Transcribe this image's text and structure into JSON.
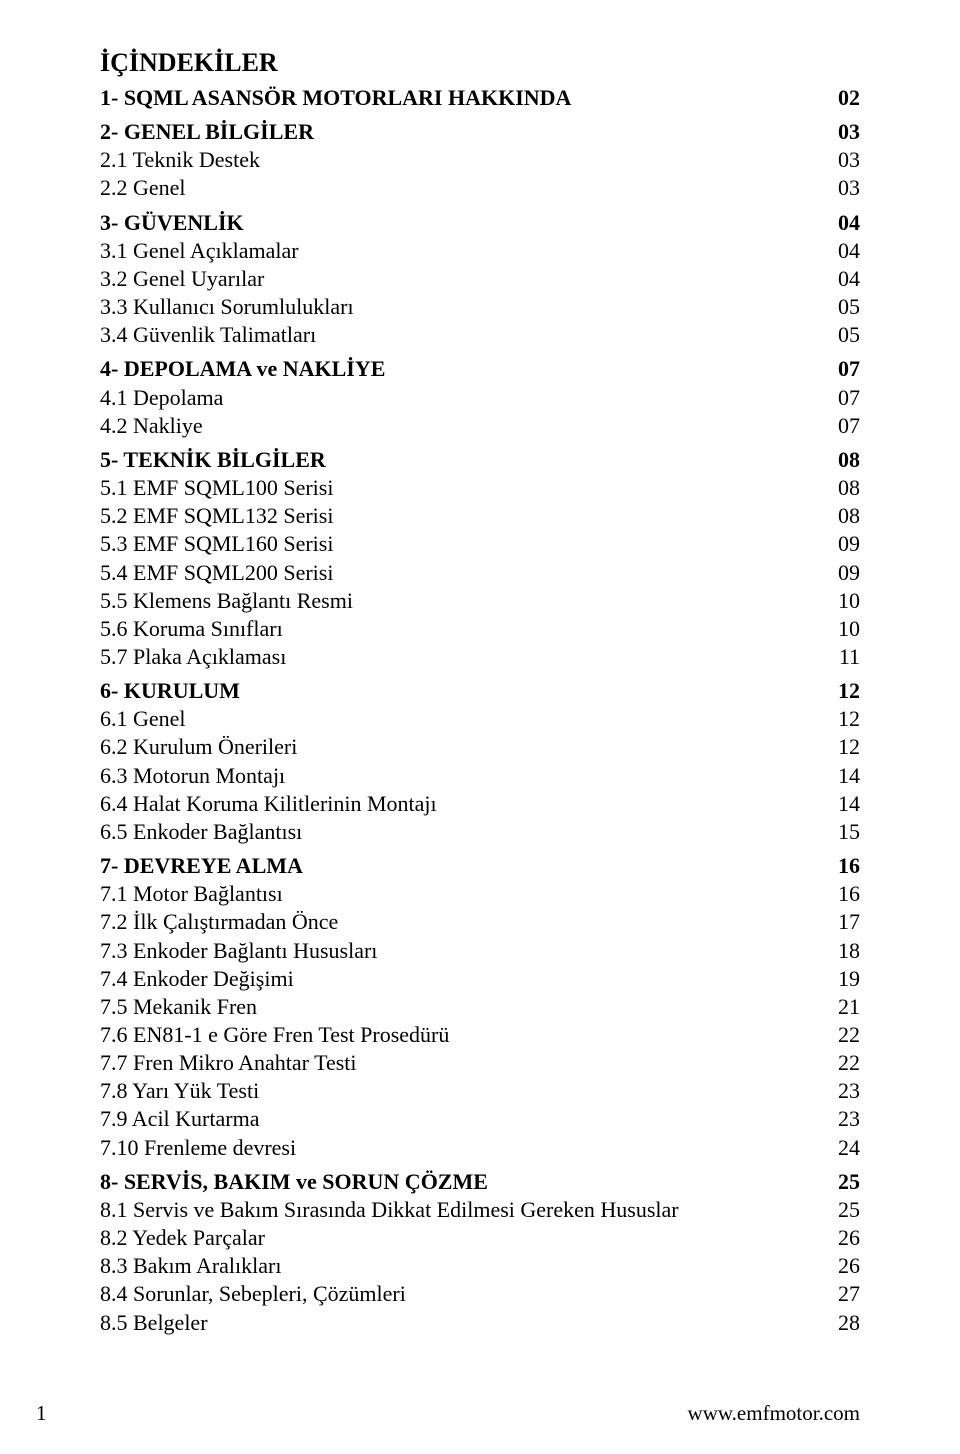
{
  "title": "İÇİNDEKİLER",
  "entries": [
    {
      "label": "1- SQML ASANSÖR MOTORLARI HAKKINDA",
      "page": "02",
      "bold": true,
      "gap": false
    },
    {
      "label": "2- GENEL BİLGİLER",
      "page": "03",
      "bold": true,
      "gap": true
    },
    {
      "label": "2.1 Teknik Destek",
      "page": "03",
      "bold": false,
      "gap": false
    },
    {
      "label": "2.2 Genel",
      "page": "03",
      "bold": false,
      "gap": false
    },
    {
      "label": "3- GÜVENLİK",
      "page": "04",
      "bold": true,
      "gap": true
    },
    {
      "label": "3.1 Genel Açıklamalar",
      "page": "04",
      "bold": false,
      "gap": false
    },
    {
      "label": "3.2 Genel Uyarılar",
      "page": "04",
      "bold": false,
      "gap": false
    },
    {
      "label": "3.3 Kullanıcı Sorumlulukları",
      "page": "05",
      "bold": false,
      "gap": false
    },
    {
      "label": "3.4 Güvenlik Talimatları",
      "page": "05",
      "bold": false,
      "gap": false
    },
    {
      "label": "4- DEPOLAMA ve NAKLİYE",
      "page": "07",
      "bold": true,
      "gap": true
    },
    {
      "label": "4.1 Depolama",
      "page": "07",
      "bold": false,
      "gap": false
    },
    {
      "label": "4.2 Nakliye",
      "page": "07",
      "bold": false,
      "gap": false
    },
    {
      "label": "5- TEKNİK BİLGİLER",
      "page": "08",
      "bold": true,
      "gap": true
    },
    {
      "label": "5.1 EMF SQML100 Serisi",
      "page": "08",
      "bold": false,
      "gap": false
    },
    {
      "label": "5.2 EMF SQML132 Serisi",
      "page": "08",
      "bold": false,
      "gap": false
    },
    {
      "label": "5.3 EMF SQML160 Serisi",
      "page": "09",
      "bold": false,
      "gap": false
    },
    {
      "label": "5.4 EMF SQML200 Serisi",
      "page": "09",
      "bold": false,
      "gap": false
    },
    {
      "label": "5.5 Klemens Bağlantı Resmi",
      "page": "10",
      "bold": false,
      "gap": false
    },
    {
      "label": "5.6 Koruma Sınıfları",
      "page": "10",
      "bold": false,
      "gap": false
    },
    {
      "label": "5.7 Plaka Açıklaması",
      "page": "11",
      "bold": false,
      "gap": false
    },
    {
      "label": "6- KURULUM",
      "page": "12",
      "bold": true,
      "gap": true
    },
    {
      "label": "6.1 Genel",
      "page": "12",
      "bold": false,
      "gap": false
    },
    {
      "label": "6.2 Kurulum Önerileri",
      "page": "12",
      "bold": false,
      "gap": false
    },
    {
      "label": "6.3 Motorun Montajı",
      "page": "14",
      "bold": false,
      "gap": false
    },
    {
      "label": "6.4 Halat Koruma Kilitlerinin Montajı",
      "page": "14",
      "bold": false,
      "gap": false
    },
    {
      "label": "6.5 Enkoder Bağlantısı",
      "page": "15",
      "bold": false,
      "gap": false
    },
    {
      "label": "7- DEVREYE ALMA",
      "page": "16",
      "bold": true,
      "gap": true
    },
    {
      "label": "7.1 Motor Bağlantısı",
      "page": "16",
      "bold": false,
      "gap": false
    },
    {
      "label": "7.2 İlk Çalıştırmadan Önce",
      "page": "17",
      "bold": false,
      "gap": false
    },
    {
      "label": "7.3 Enkoder Bağlantı Hususları",
      "page": "18",
      "bold": false,
      "gap": false
    },
    {
      "label": "7.4 Enkoder Değişimi",
      "page": "19",
      "bold": false,
      "gap": false
    },
    {
      "label": "7.5 Mekanik Fren",
      "page": "21",
      "bold": false,
      "gap": false
    },
    {
      "label": "7.6 EN81-1 e Göre Fren Test Prosedürü",
      "page": "22",
      "bold": false,
      "gap": false
    },
    {
      "label": "7.7 Fren Mikro Anahtar Testi",
      "page": "22",
      "bold": false,
      "gap": false
    },
    {
      "label": "7.8 Yarı Yük Testi",
      "page": "23",
      "bold": false,
      "gap": false
    },
    {
      "label": "7.9 Acil Kurtarma",
      "page": "23",
      "bold": false,
      "gap": false
    },
    {
      "label": "7.10 Frenleme devresi",
      "page": "24",
      "bold": false,
      "gap": false
    },
    {
      "label": "8- SERVİS, BAKIM ve SORUN ÇÖZME",
      "page": "25",
      "bold": true,
      "gap": true
    },
    {
      "label": "8.1 Servis ve Bakım Sırasında Dikkat Edilmesi Gereken Hususlar",
      "page": "25",
      "bold": false,
      "gap": false
    },
    {
      "label": "8.2 Yedek Parçalar",
      "page": "26",
      "bold": false,
      "gap": false
    },
    {
      "label": "8.3 Bakım Aralıkları",
      "page": "26",
      "bold": false,
      "gap": false
    },
    {
      "label": "8.4 Sorunlar, Sebepleri, Çözümleri",
      "page": "27",
      "bold": false,
      "gap": false
    },
    {
      "label": "8.5 Belgeler",
      "page": "28",
      "bold": false,
      "gap": false
    }
  ],
  "footer": {
    "page_number": "1",
    "url": "www.emfmotor.com"
  }
}
